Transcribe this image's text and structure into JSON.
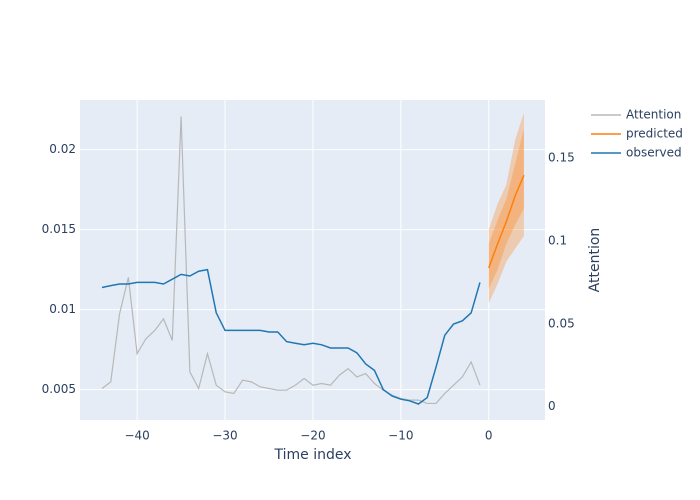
{
  "chart_data": {
    "type": "line",
    "x_label": "Time index",
    "y2_label": "Attention",
    "xlim": [
      -46.5,
      6.4
    ],
    "xticks": [
      {
        "value": -40,
        "label": "−40"
      },
      {
        "value": -30,
        "label": "−30"
      },
      {
        "value": -20,
        "label": "−20"
      },
      {
        "value": -10,
        "label": "−10"
      },
      0
    ],
    "ylim": [
      0.0031,
      0.0231
    ],
    "yticks": [
      0.005,
      0.01,
      0.015,
      0.02
    ],
    "y2lim": [
      -0.008,
      0.185
    ],
    "y2ticks": [
      0,
      0.05,
      0.1,
      0.15
    ],
    "grid": true,
    "legend": "right",
    "series": [
      {
        "name": "Attention",
        "color": "#b8b8b8",
        "axis": "y2",
        "x": [
          -44,
          -43,
          -42,
          -41,
          -40,
          -39,
          -38,
          -37,
          -36,
          -35,
          -34,
          -33,
          -32,
          -31,
          -30,
          -29,
          -28,
          -27,
          -26,
          -25,
          -24,
          -23,
          -22,
          -21,
          -20,
          -19,
          -18,
          -17,
          -16,
          -15,
          -14,
          -13,
          -12,
          -11,
          -10,
          -9,
          -8,
          -7,
          -6,
          -5,
          -4,
          -3,
          -2,
          -1
        ],
        "values": [
          0.011,
          0.015,
          0.056,
          0.078,
          0.032,
          0.041,
          0.046,
          0.053,
          0.04,
          0.175,
          0.021,
          0.011,
          0.032,
          0.013,
          0.009,
          0.008,
          0.016,
          0.015,
          0.012,
          0.011,
          0.01,
          0.01,
          0.013,
          0.017,
          0.013,
          0.014,
          0.013,
          0.019,
          0.023,
          0.018,
          0.02,
          0.014,
          0.01,
          0.007,
          0.005,
          0.004,
          0.004,
          0.002,
          0.002,
          0.008,
          0.013,
          0.018,
          0.027,
          0.013
        ]
      },
      {
        "name": "predicted",
        "color": "#ff7f0e",
        "x": [
          0,
          1,
          2,
          3,
          4
        ],
        "values": [
          0.0126,
          0.0141,
          0.0155,
          0.0171,
          0.0184
        ],
        "bands": [
          {
            "lower": [
              0.0104,
              0.0116,
              0.013,
              0.0138,
              0.0146
            ],
            "upper": [
              0.015,
              0.0166,
              0.0178,
              0.0206,
              0.0223
            ]
          },
          {
            "lower": [
              0.0113,
              0.0125,
              0.0141,
              0.0153,
              0.0163
            ],
            "upper": [
              0.0141,
              0.0156,
              0.0169,
              0.0191,
              0.0213
            ]
          }
        ]
      },
      {
        "name": "observed",
        "color": "#1f77b4",
        "x": [
          -44,
          -43,
          -42,
          -41,
          -40,
          -39,
          -38,
          -37,
          -36,
          -35,
          -34,
          -33,
          -32,
          -31,
          -30,
          -29,
          -28,
          -27,
          -26,
          -25,
          -24,
          -23,
          -22,
          -21,
          -20,
          -19,
          -18,
          -17,
          -16,
          -15,
          -14,
          -13,
          -12,
          -11,
          -10,
          -9,
          -8,
          -7,
          -6,
          -5,
          -4,
          -3,
          -2,
          -1
        ],
        "values": [
          0.01138,
          0.0115,
          0.0116,
          0.0116,
          0.0117,
          0.0117,
          0.0117,
          0.0116,
          0.0119,
          0.0122,
          0.0121,
          0.0124,
          0.0125,
          0.0098,
          0.0087,
          0.0087,
          0.0087,
          0.0087,
          0.0087,
          0.0086,
          0.0086,
          0.008,
          0.0079,
          0.0078,
          0.0079,
          0.0078,
          0.0076,
          0.0076,
          0.0076,
          0.0073,
          0.0066,
          0.0062,
          0.005,
          0.0046,
          0.0044,
          0.0043,
          0.0041,
          0.0045,
          0.0064,
          0.0084,
          0.0091,
          0.0093,
          0.0098,
          0.0117
        ]
      }
    ]
  }
}
